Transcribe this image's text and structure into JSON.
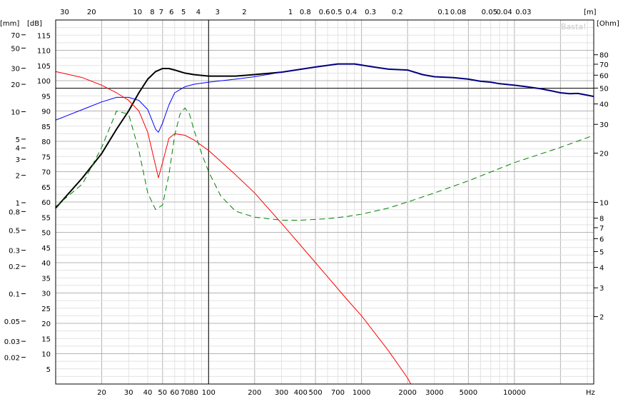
{
  "chart_data": {
    "type": "line",
    "title": "",
    "watermark": "Basta!",
    "x_axis": {
      "unit": "Hz",
      "scale": "log",
      "range": [
        10,
        33000
      ],
      "tick_labels": [
        {
          "value": 20,
          "label": "20"
        },
        {
          "value": 30,
          "label": "30"
        },
        {
          "value": 40,
          "label": "40"
        },
        {
          "value": 50,
          "label": "50"
        },
        {
          "value": 60,
          "label": "60"
        },
        {
          "value": 70,
          "label": "70"
        },
        {
          "value": 80,
          "label": "80"
        },
        {
          "value": 100,
          "label": "100"
        },
        {
          "value": 200,
          "label": "200"
        },
        {
          "value": 300,
          "label": "300"
        },
        {
          "value": 400,
          "label": "400"
        },
        {
          "value": 500,
          "label": "500"
        },
        {
          "value": 700,
          "label": "700"
        },
        {
          "value": 1000,
          "label": "1000"
        },
        {
          "value": 2000,
          "label": "2000"
        },
        {
          "value": 3000,
          "label": "3000"
        },
        {
          "value": 5000,
          "label": "5000"
        },
        {
          "value": 10000,
          "label": "10000"
        }
      ]
    },
    "x_top_axis": {
      "unit": "[m]",
      "tick_labels": [
        {
          "value": 30,
          "label": "30"
        },
        {
          "value": 20,
          "label": "20"
        },
        {
          "value": 10,
          "label": "10"
        },
        {
          "value": 8,
          "label": "8"
        },
        {
          "value": 7,
          "label": "7"
        },
        {
          "value": 6,
          "label": "6"
        },
        {
          "value": 5,
          "label": "5"
        },
        {
          "value": 4,
          "label": "4"
        },
        {
          "value": 3,
          "label": "3"
        },
        {
          "value": 2,
          "label": "2"
        },
        {
          "value": 1,
          "label": "1"
        },
        {
          "value": 0.8,
          "label": "0.8"
        },
        {
          "value": 0.6,
          "label": "0.6"
        },
        {
          "value": 0.5,
          "label": "0.5"
        },
        {
          "value": 0.4,
          "label": "0.4"
        },
        {
          "value": 0.3,
          "label": "0.3"
        },
        {
          "value": 0.2,
          "label": "0.2"
        },
        {
          "value": 0.1,
          "label": "0.1"
        },
        {
          "value": 0.08,
          "label": "0.08"
        },
        {
          "value": 0.05,
          "label": "0.05"
        },
        {
          "value": 0.04,
          "label": "0.04"
        },
        {
          "value": 0.03,
          "label": "0.03"
        }
      ]
    },
    "y_axis_db": {
      "unit": "[dB]",
      "range": [
        0,
        120
      ],
      "tick_labels": [
        "5",
        "10",
        "15",
        "20",
        "25",
        "30",
        "35",
        "40",
        "45",
        "50",
        "55",
        "60",
        "65",
        "70",
        "75",
        "80",
        "85",
        "90",
        "95",
        "100",
        "105",
        "110",
        "115"
      ]
    },
    "y_axis_mm": {
      "unit": "[mm]",
      "scale": "log",
      "tick_labels": [
        {
          "value": 70,
          "label": "70"
        },
        {
          "value": 50,
          "label": "50"
        },
        {
          "value": 30,
          "label": "30"
        },
        {
          "value": 20,
          "label": "20"
        },
        {
          "value": 10,
          "label": "10"
        },
        {
          "value": 5,
          "label": "5"
        },
        {
          "value": 4,
          "label": "4"
        },
        {
          "value": 3,
          "label": "3"
        },
        {
          "value": 2,
          "label": "2"
        },
        {
          "value": 1,
          "label": "1"
        },
        {
          "value": 0.8,
          "label": "0.8"
        },
        {
          "value": 0.5,
          "label": "0.5"
        },
        {
          "value": 0.3,
          "label": "0.3"
        },
        {
          "value": 0.2,
          "label": "0.2"
        },
        {
          "value": 0.1,
          "label": "0.1"
        },
        {
          "value": 0.05,
          "label": "0.05"
        },
        {
          "value": 0.03,
          "label": "0.03"
        },
        {
          "value": 0.02,
          "label": "0.02"
        }
      ]
    },
    "y_axis_ohm": {
      "unit": "[Ohm]",
      "scale": "log",
      "tick_labels": [
        {
          "value": 80,
          "label": "80"
        },
        {
          "value": 70,
          "label": "70"
        },
        {
          "value": 60,
          "label": "60"
        },
        {
          "value": 50,
          "label": "50"
        },
        {
          "value": 40,
          "label": "40"
        },
        {
          "value": 30,
          "label": "30"
        },
        {
          "value": 20,
          "label": "20"
        },
        {
          "value": 10,
          "label": "10"
        },
        {
          "value": 8,
          "label": "8"
        },
        {
          "value": 7,
          "label": "7"
        },
        {
          "value": 6,
          "label": "6"
        },
        {
          "value": 5,
          "label": "5"
        },
        {
          "value": 4,
          "label": "4"
        },
        {
          "value": 3,
          "label": "3"
        },
        {
          "value": 2,
          "label": "2"
        }
      ]
    },
    "grid": true,
    "markers": {
      "vertical_hz": 100,
      "horizontal_db": 97.5
    },
    "series": [
      {
        "color": "#000000",
        "width": 2,
        "dash": "",
        "x": [
          10,
          15,
          20,
          25,
          30,
          35,
          40,
          45,
          50,
          55,
          60,
          70,
          80,
          100,
          150,
          200,
          300
        ],
        "y": [
          58,
          68,
          76,
          84,
          90,
          96,
          100.5,
          103,
          104,
          104,
          103.5,
          102.5,
          102,
          101.5,
          101.5,
          102,
          102.8
        ]
      },
      {
        "color": "#000080",
        "width": 2,
        "dash": "",
        "x": [
          300,
          500,
          700,
          900,
          1200,
          1500,
          2000,
          2500,
          3000,
          4000,
          5000,
          6000,
          7000,
          8000,
          10000,
          12000,
          15000,
          18000,
          20000,
          23000,
          26000,
          30000,
          33000
        ],
        "y": [
          102.8,
          104.5,
          105.5,
          105.5,
          104.5,
          103.8,
          103.5,
          102,
          101.3,
          101,
          100.5,
          99.8,
          99.5,
          99,
          98.5,
          98,
          97.3,
          96.5,
          96,
          95.7,
          95.8,
          95.2,
          94.8
        ]
      },
      {
        "color": "#0000ff",
        "width": 1,
        "dash": "",
        "x": [
          10,
          15,
          20,
          25,
          30,
          35,
          40,
          45,
          47,
          50,
          55,
          60,
          70,
          80,
          100,
          150,
          200,
          300
        ],
        "y": [
          87,
          90.5,
          93,
          94.5,
          94.5,
          93.5,
          90.5,
          84,
          83,
          86,
          92,
          96,
          98,
          98.8,
          99.5,
          100.5,
          101.3,
          102.8
        ]
      },
      {
        "color": "#ff0000",
        "width": 1,
        "dash": "",
        "x": [
          10,
          15,
          20,
          25,
          30,
          35,
          40,
          45,
          47,
          50,
          55,
          60,
          70,
          80,
          100,
          150,
          200,
          300,
          500,
          800,
          1000,
          1500,
          2000,
          2100,
          3000,
          5000,
          10000,
          20000,
          33000
        ],
        "y": [
          103,
          101,
          98.5,
          96,
          93.5,
          90,
          83,
          72,
          68,
          73,
          81,
          82.5,
          82,
          80.5,
          77,
          69,
          63,
          53,
          40,
          28,
          22.5,
          11,
          2,
          0,
          0,
          0,
          0,
          0,
          0
        ]
      },
      {
        "color": "#008000",
        "width": 1,
        "dash": "8,5",
        "x": [
          10,
          15,
          20,
          25,
          30,
          35,
          40,
          45,
          50,
          55,
          60,
          65,
          70,
          75,
          80,
          90,
          100,
          120,
          150,
          200,
          300,
          400,
          600,
          800,
          1000,
          1500,
          2000,
          3000,
          5000,
          10000,
          20000,
          33000
        ],
        "y": [
          58.5,
          66,
          78,
          90,
          89,
          77,
          63,
          57.5,
          59,
          69,
          82,
          89,
          91,
          89,
          84,
          76,
          70,
          62,
          57,
          55,
          54,
          54,
          54.5,
          55.2,
          56,
          58,
          60,
          63,
          67,
          73,
          78,
          82
        ]
      }
    ]
  }
}
